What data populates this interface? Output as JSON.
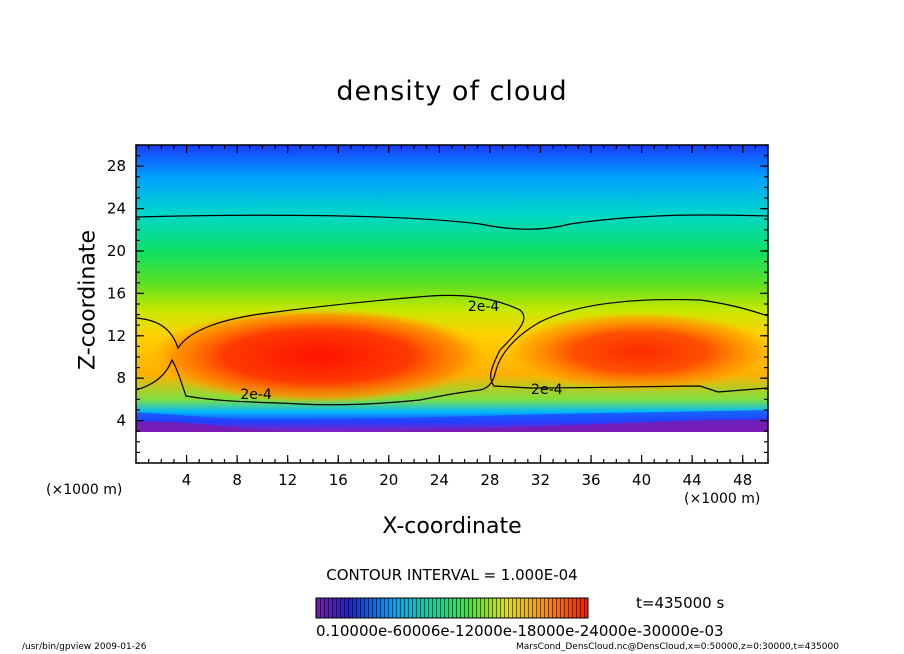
{
  "chart_data": {
    "type": "heatmap",
    "title": "density of cloud",
    "xlabel": "X-coordinate",
    "ylabel": "Z-coordinate",
    "x_unit_label": "(×1000 m)",
    "xlim": [
      0,
      50
    ],
    "ylim": [
      0,
      30
    ],
    "x_ticks": [
      "4",
      "8",
      "12",
      "16",
      "20",
      "24",
      "28",
      "32",
      "36",
      "40",
      "44",
      "48"
    ],
    "x_tick_values": [
      4,
      8,
      12,
      16,
      20,
      24,
      28,
      32,
      36,
      40,
      44,
      48
    ],
    "y_ticks": [
      "4",
      "8",
      "12",
      "16",
      "20",
      "24",
      "28"
    ],
    "y_tick_values": [
      4,
      8,
      12,
      16,
      20,
      24,
      28
    ],
    "contour_interval": "CONTOUR INTERVAL = 1.000E-04",
    "contour_labels": [
      {
        "text": "2e-4",
        "x": 9.5,
        "z": 6.5
      },
      {
        "text": "2e-4",
        "x": 27.5,
        "z": 14.8
      },
      {
        "text": "2e-4",
        "x": 32.5,
        "z": 7.0
      }
    ],
    "colorbar_labels": "0.10000e-60006e-12000e-18000e-24000e-30000e-03",
    "time_label": "t=435000 s",
    "colors": {
      "low": "#2a1a9a",
      "high": "#ff1a00",
      "ground": "#7a1ab0"
    }
  },
  "footer": {
    "left": "/usr/bin/gpview   2009-01-26",
    "right": "MarsCond_DensCloud.nc@DensCloud,x=0:50000,z=0:30000,t=435000"
  }
}
